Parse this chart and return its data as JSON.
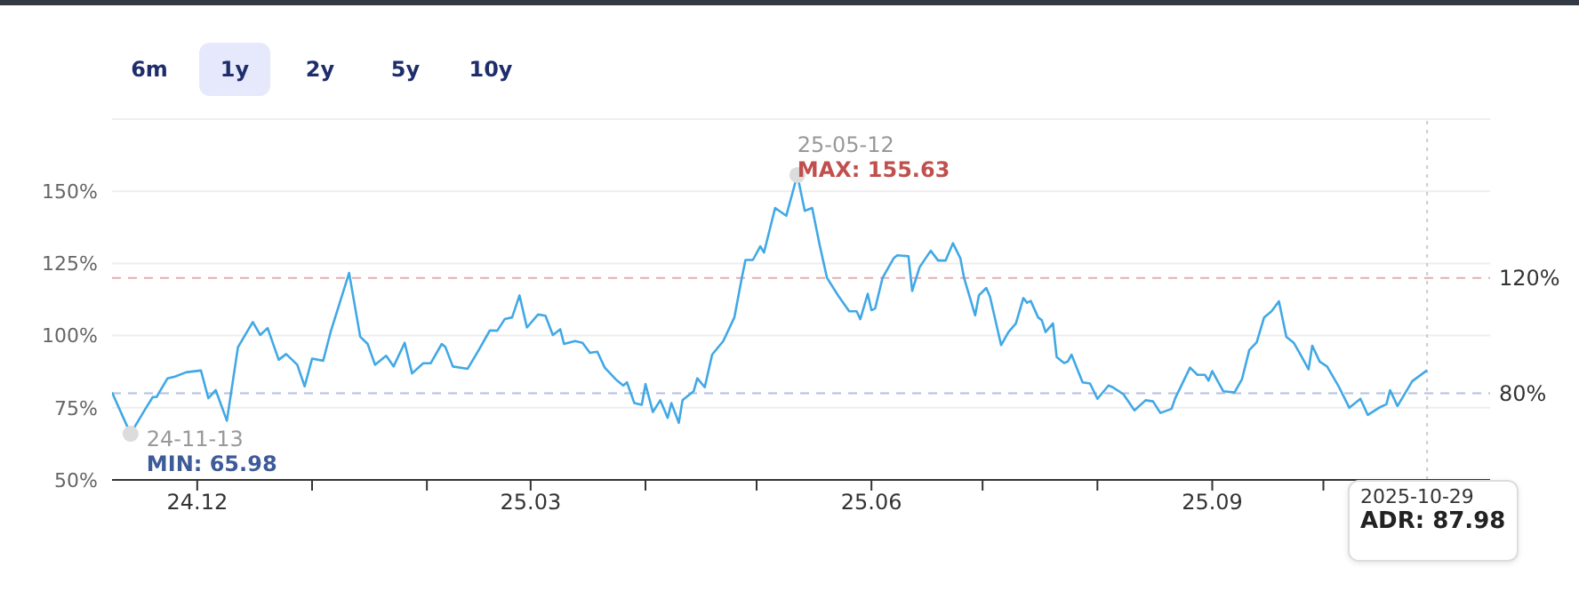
{
  "chart_data": {
    "type": "line",
    "xlim": [
      "2024-11-08",
      "2025-11-15"
    ],
    "xticks": [
      {
        "value": "2024-12-01",
        "label": "24.12"
      },
      {
        "value": "2025-01-01",
        "label": null
      },
      {
        "value": "2025-02-01",
        "label": null
      },
      {
        "value": "2025-03-01",
        "label": "25.03"
      },
      {
        "value": "2025-04-01",
        "label": null
      },
      {
        "value": "2025-05-01",
        "label": null
      },
      {
        "value": "2025-06-01",
        "label": "25.06"
      },
      {
        "value": "2025-07-01",
        "label": null
      },
      {
        "value": "2025-08-01",
        "label": null
      },
      {
        "value": "2025-09-01",
        "label": "25.09"
      },
      {
        "value": "2025-10-01",
        "label": null
      }
    ],
    "ylim": [
      50,
      175
    ],
    "yticks": [
      {
        "value": 50,
        "label": "50%"
      },
      {
        "value": 75,
        "label": "75%"
      },
      {
        "value": 100,
        "label": "100%"
      },
      {
        "value": 125,
        "label": "125%"
      },
      {
        "value": 150,
        "label": "150%"
      },
      {
        "value": 175,
        "label": null
      }
    ],
    "grid": "y",
    "marker": "none",
    "line_style": "solid",
    "series": [
      {
        "color": "#41a8e6",
        "x": [
          "2024-11-08",
          "2024-11-13",
          "2024-11-17",
          "2024-11-19",
          "2024-11-20",
          "2024-11-23",
          "2024-11-25",
          "2024-11-28",
          "2024-12-02",
          "2024-12-04",
          "2024-12-06",
          "2024-12-09",
          "2024-12-12",
          "2024-12-16",
          "2024-12-18",
          "2024-12-20",
          "2024-12-23",
          "2024-12-25",
          "2024-12-28",
          "2024-12-30",
          "2025-01-01",
          "2025-01-04",
          "2025-01-06",
          "2025-01-11",
          "2025-01-14",
          "2025-01-16",
          "2025-01-18",
          "2025-01-21",
          "2025-01-23",
          "2025-01-26",
          "2025-01-28",
          "2025-01-31",
          "2025-02-02",
          "2025-02-05",
          "2025-02-06",
          "2025-02-08",
          "2025-02-12",
          "2025-02-15",
          "2025-02-18",
          "2025-02-20",
          "2025-02-22",
          "2025-02-24",
          "2025-02-26",
          "2025-02-28",
          "2025-03-03",
          "2025-03-05",
          "2025-03-07",
          "2025-03-09",
          "2025-03-10",
          "2025-03-13",
          "2025-03-15",
          "2025-03-17",
          "2025-03-19",
          "2025-03-21",
          "2025-03-24",
          "2025-03-26",
          "2025-03-27",
          "2025-03-29",
          "2025-03-31",
          "2025-04-01",
          "2025-04-03",
          "2025-04-05",
          "2025-04-07",
          "2025-04-08",
          "2025-04-10",
          "2025-04-11",
          "2025-04-14",
          "2025-04-15",
          "2025-04-17",
          "2025-04-19",
          "2025-04-22",
          "2025-04-25",
          "2025-04-27",
          "2025-04-28",
          "2025-04-30",
          "2025-05-02",
          "2025-05-03",
          "2025-05-06",
          "2025-05-09",
          "2025-05-12",
          "2025-05-14",
          "2025-05-16",
          "2025-05-18",
          "2025-05-20",
          "2025-05-23",
          "2025-05-26",
          "2025-05-28",
          "2025-05-29",
          "2025-05-31",
          "2025-06-01",
          "2025-06-02",
          "2025-06-04",
          "2025-06-07",
          "2025-06-08",
          "2025-06-11",
          "2025-06-12",
          "2025-06-14",
          "2025-06-17",
          "2025-06-19",
          "2025-06-21",
          "2025-06-23",
          "2025-06-25",
          "2025-06-26",
          "2025-06-29",
          "2025-06-30",
          "2025-07-02",
          "2025-07-03",
          "2025-07-06",
          "2025-07-08",
          "2025-07-10",
          "2025-07-12",
          "2025-07-13",
          "2025-07-14",
          "2025-07-16",
          "2025-07-17",
          "2025-07-18",
          "2025-07-20",
          "2025-07-21",
          "2025-07-23",
          "2025-07-24",
          "2025-07-25",
          "2025-07-28",
          "2025-07-30",
          "2025-08-01",
          "2025-08-04",
          "2025-08-05",
          "2025-08-08",
          "2025-08-11",
          "2025-08-14",
          "2025-08-16",
          "2025-08-18",
          "2025-08-21",
          "2025-08-22",
          "2025-08-26",
          "2025-08-28",
          "2025-08-30",
          "2025-08-31",
          "2025-09-01",
          "2025-09-04",
          "2025-09-07",
          "2025-09-09",
          "2025-09-11",
          "2025-09-13",
          "2025-09-15",
          "2025-09-17",
          "2025-09-19",
          "2025-09-21",
          "2025-09-23",
          "2025-09-25",
          "2025-09-27",
          "2025-09-28",
          "2025-09-30",
          "2025-10-02",
          "2025-10-05",
          "2025-10-08",
          "2025-10-11",
          "2025-10-13",
          "2025-10-16",
          "2025-10-18",
          "2025-10-19",
          "2025-10-21",
          "2025-10-25",
          "2025-10-29"
        ],
        "values": [
          80.3,
          65.98,
          74.6,
          78.7,
          78.7,
          85.2,
          85.8,
          87.3,
          87.9,
          78.3,
          81.1,
          70.5,
          96,
          104.7,
          100.2,
          102.6,
          91.6,
          93.6,
          89.9,
          82.4,
          92,
          91.3,
          101.2,
          121.7,
          99.6,
          97.1,
          89.9,
          93,
          89.3,
          97.5,
          86.9,
          90.4,
          90.4,
          97.1,
          96,
          89.3,
          88.5,
          95,
          101.8,
          101.7,
          105.7,
          106.3,
          113.9,
          102.8,
          107.3,
          106.9,
          100.2,
          102.2,
          97.1,
          98.1,
          97.5,
          94,
          94.4,
          88.9,
          84.8,
          82.7,
          83.8,
          76.6,
          76,
          83.2,
          73.5,
          77.6,
          71.5,
          76.6,
          69.8,
          77.6,
          80.7,
          85.2,
          82.1,
          93.4,
          98.1,
          106.3,
          120,
          126.2,
          126.2,
          130.9,
          128.8,
          144.2,
          141.5,
          155.63,
          143.2,
          144.2,
          131.5,
          120,
          113.9,
          108.4,
          108.4,
          105.7,
          114.5,
          108.8,
          109.4,
          120,
          126.8,
          127.8,
          127.5,
          115.5,
          123.7,
          129.4,
          126,
          126,
          132,
          126.8,
          120,
          107,
          113.9,
          116.5,
          113.5,
          96.7,
          101.2,
          104.2,
          113,
          111.4,
          112,
          106.3,
          105.3,
          101.2,
          104.2,
          92.6,
          90.5,
          91,
          93.4,
          83.8,
          83.4,
          78.1,
          82.7,
          82.2,
          79.7,
          74.1,
          77.6,
          77.2,
          73.2,
          74.6,
          78.3,
          88.9,
          86.4,
          86.4,
          84.4,
          87.7,
          80.7,
          80.3,
          84.8,
          95,
          97.7,
          106.3,
          108.4,
          111.9,
          99.6,
          97.5,
          93,
          88.3,
          96.5,
          91,
          89.3,
          82.7,
          75,
          78.1,
          72.5,
          75,
          76.2,
          81.1,
          75.6,
          84.2,
          87.98
        ]
      },
      {
        "type": "scatter",
        "color": "#dcdcdc",
        "marker": "circle",
        "x": [
          "2024-11-13",
          "2025-05-12"
        ],
        "values": [
          65.98,
          155.63
        ]
      }
    ],
    "ref_lines": [
      {
        "axis": "y",
        "value": 120,
        "label": "120%",
        "color": "#e3aeb2",
        "line_style": "dashed"
      },
      {
        "axis": "y",
        "value": 80,
        "label": "80%",
        "color": "#b4c0de",
        "line_style": "dashed"
      },
      {
        "axis": "x",
        "value": "2025-10-29",
        "color": "#cccccc",
        "line_style": "dotted"
      }
    ],
    "annotations": [
      {
        "text": "24-11-13",
        "x": "2024-11-13",
        "y": 65.98
      },
      {
        "text": "MIN: 65.98",
        "x": "2024-11-13",
        "y": 65.98
      },
      {
        "text": "25-05-12",
        "x": "2025-05-12",
        "y": 155.63
      },
      {
        "text": "MAX: 155.63",
        "x": "2025-05-12",
        "y": 155.63
      },
      "2025-10-29",
      "ADR: 87.98",
      "6m",
      "1y",
      "2y",
      "5y",
      "10y"
    ]
  }
}
